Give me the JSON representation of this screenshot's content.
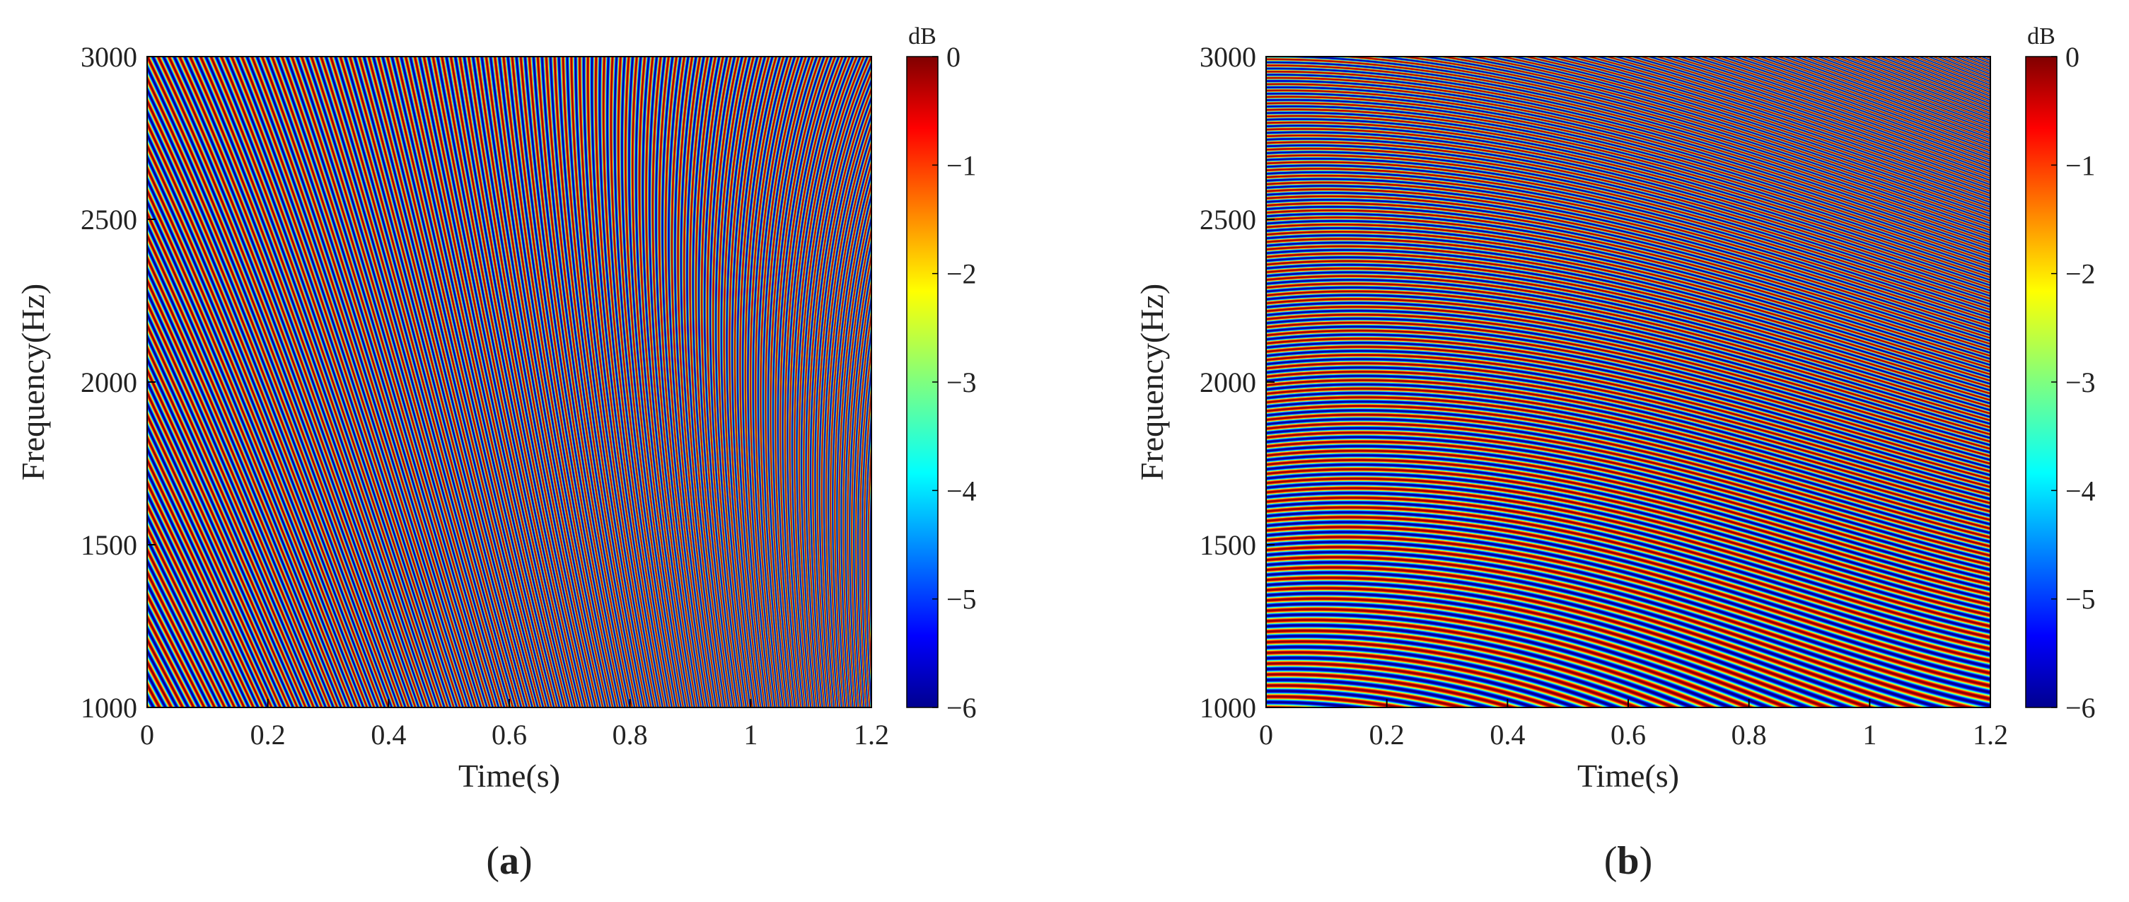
{
  "chart_data": [
    {
      "type": "heatmap",
      "panel_label": "a",
      "xlabel": "Time(s)",
      "ylabel": "Frequency(Hz)",
      "xlim": [
        0,
        1.2
      ],
      "ylim": [
        1000,
        3000
      ],
      "xticks": [
        "0",
        "0.2",
        "0.4",
        "0.6",
        "0.8",
        "1",
        "1.2"
      ],
      "yticks": [
        "1000",
        "1500",
        "2000",
        "2500",
        "3000"
      ],
      "colorbar": {
        "label": "dB",
        "range": [
          -6,
          0
        ],
        "ticks": [
          "0",
          "−1",
          "−2",
          "−3",
          "−4",
          "−5",
          "−6"
        ],
        "colormap": "jet"
      },
      "pattern": {
        "description_free": true,
        "stripe_density_top_left": 80,
        "stripe_density_bottom_right": 130,
        "curvature": "concave-up"
      }
    },
    {
      "type": "heatmap",
      "panel_label": "b",
      "xlabel": "Time(s)",
      "ylabel": "Frequency(Hz)",
      "xlim": [
        0,
        1.2
      ],
      "ylim": [
        1000,
        3000
      ],
      "xticks": [
        "0",
        "0.2",
        "0.4",
        "0.6",
        "0.8",
        "1",
        "1.2"
      ],
      "yticks": [
        "1000",
        "1500",
        "2000",
        "2500",
        "3000"
      ],
      "colorbar": {
        "label": "dB",
        "range": [
          -6,
          0
        ],
        "ticks": [
          "0",
          "−1",
          "−2",
          "−3",
          "−4",
          "−5",
          "−6"
        ],
        "colormap": "jet"
      },
      "pattern": {
        "description_free": true,
        "stripe_density_top_left": 80,
        "stripe_density_bottom_right": 30,
        "curvature": "concave-down"
      }
    }
  ]
}
